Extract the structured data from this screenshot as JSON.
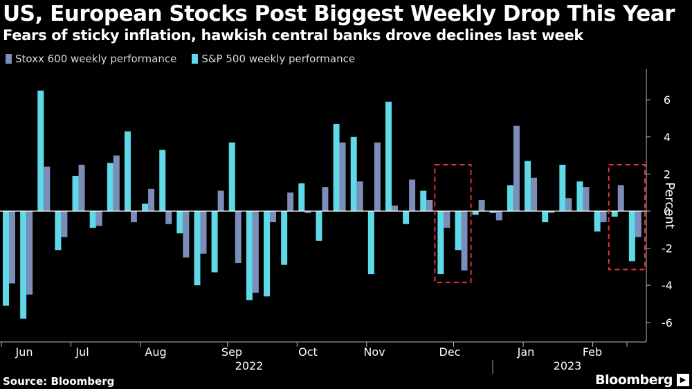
{
  "title": "US, European Stocks Post Biggest Weekly Drop This Year",
  "subtitle": "Fears of sticky inflation, hawkish central banks drove declines last week",
  "source": "Source: Bloomberg",
  "brand": "Bloomberg",
  "chart_data": {
    "type": "bar",
    "ylabel": "Percent",
    "ylim": [
      -7,
      7.5
    ],
    "yticks": [
      -6,
      -4,
      -2,
      0,
      2,
      4,
      6
    ],
    "grid": false,
    "legend_position": "top-left",
    "colors": {
      "stoxx": "#7b8db8",
      "sp500": "#5fd8e8",
      "highlight": "#e8323c",
      "background": "#000000"
    },
    "month_labels": [
      "Jun",
      "Jul",
      "Aug",
      "Sep",
      "Oct",
      "Nov",
      "Dec",
      "Jan",
      "Feb"
    ],
    "year_labels": [
      "2022",
      "2023"
    ],
    "series": [
      {
        "name": "Stoxx 600 weekly performance",
        "values": [
          -3.9,
          -4.5,
          2.4,
          -1.4,
          2.5,
          -0.8,
          3.0,
          -0.6,
          1.2,
          -0.7,
          -2.5,
          -2.3,
          1.1,
          -2.8,
          -4.4,
          -0.6,
          1.0,
          -0.1,
          1.3,
          3.7,
          1.6,
          3.7,
          0.3,
          1.7,
          0.6,
          -0.9,
          -3.2,
          0.6,
          -0.5,
          4.6,
          1.8,
          -0.1,
          0.7,
          1.3,
          -0.6,
          1.4,
          -1.4
        ]
      },
      {
        "name": "S&P 500 weekly performance",
        "values": [
          -5.1,
          -5.8,
          6.5,
          -2.1,
          1.9,
          -0.9,
          2.6,
          4.3,
          0.4,
          3.3,
          -1.2,
          -4.0,
          -3.3,
          3.7,
          -4.8,
          -4.6,
          -2.9,
          1.5,
          -1.6,
          4.7,
          4.0,
          -3.4,
          5.9,
          -0.7,
          1.1,
          -3.4,
          -2.1,
          -0.2,
          -0.1,
          1.4,
          2.7,
          -0.6,
          2.5,
          1.6,
          -1.1,
          -0.3,
          -2.7
        ]
      }
    ],
    "highlight_boxes": [
      {
        "weeks": [
          25,
          26
        ]
      },
      {
        "weeks": [
          35,
          36
        ]
      }
    ]
  }
}
